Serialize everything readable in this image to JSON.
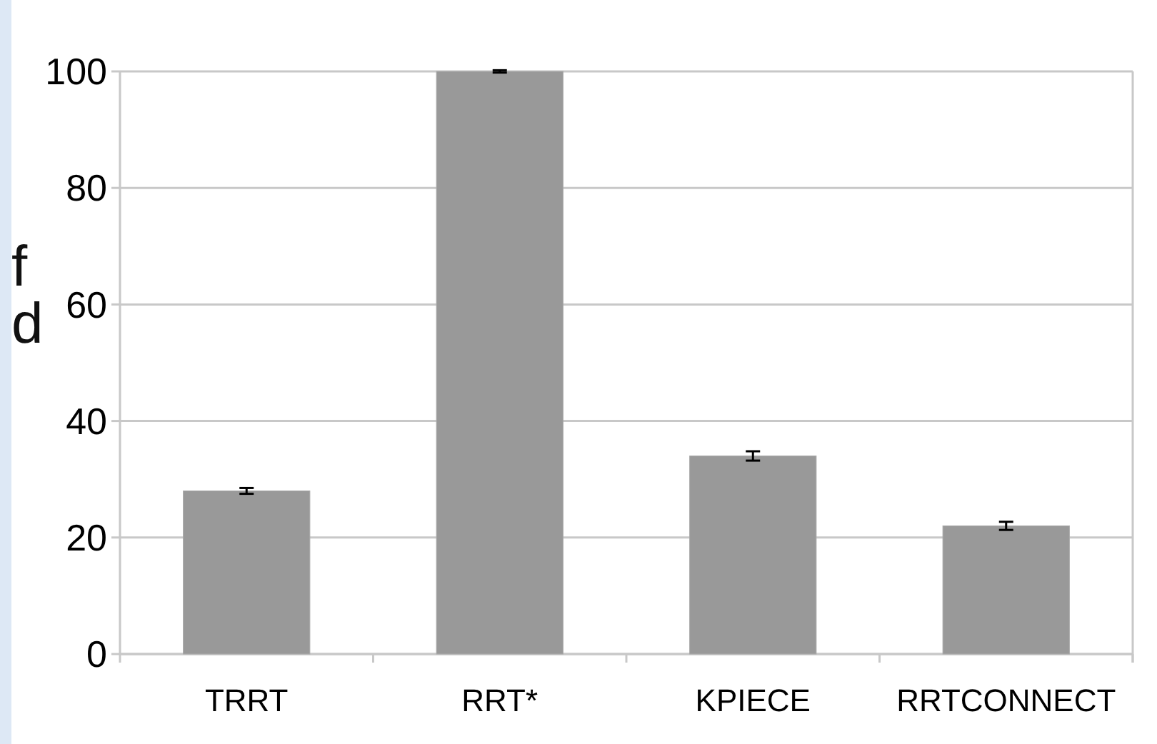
{
  "chart_data": {
    "type": "bar",
    "categories": [
      "TRRT",
      "RRT*",
      "KPIECE",
      "RRTCONNECT"
    ],
    "values": [
      28,
      100,
      34,
      22
    ],
    "errors": [
      0.5,
      0.2,
      0.8,
      0.7
    ],
    "color": "#999999",
    "ylim": [
      0,
      100
    ],
    "yticks": [
      0,
      20,
      40,
      60,
      80,
      100
    ],
    "grid": "y",
    "annotations": [
      "f",
      "d"
    ]
  }
}
